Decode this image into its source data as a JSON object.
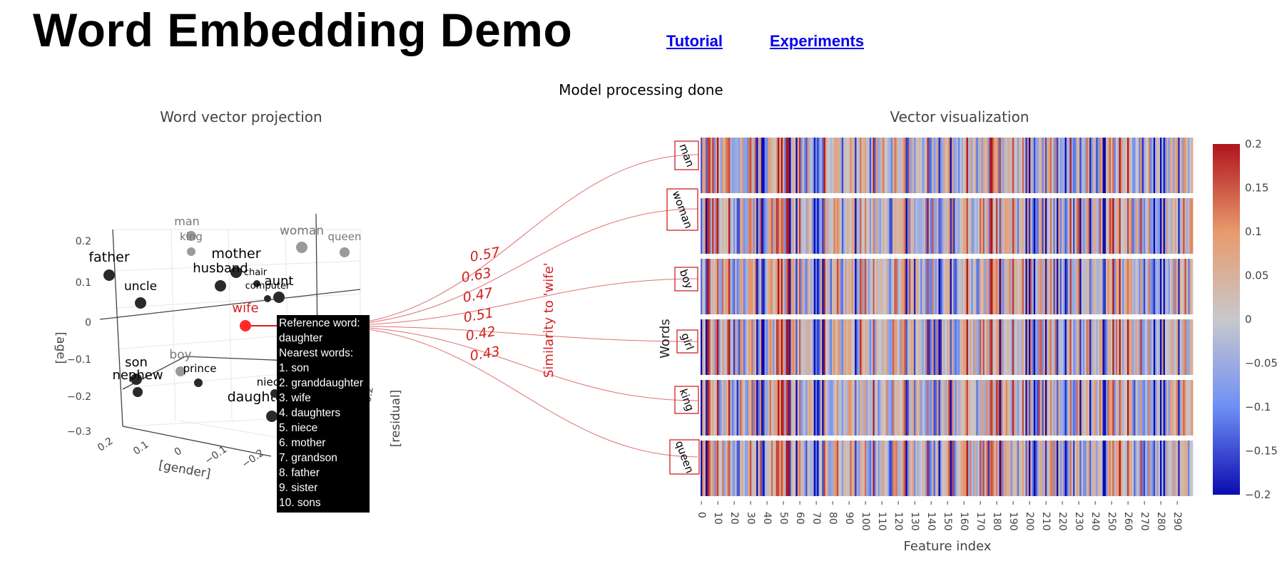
{
  "header": {
    "title": "Word Embedding Demo",
    "links": [
      {
        "label": "Tutorial"
      },
      {
        "label": "Experiments"
      }
    ]
  },
  "status": "Model processing done",
  "projection": {
    "title": "Word vector projection",
    "axes": {
      "x": "[gender]",
      "y": "[age]",
      "z": "[residual]"
    },
    "age_ticks": [
      "0.2",
      "0.1",
      "0",
      "−0.1",
      "−0.2",
      "−0.3"
    ],
    "gender_ticks": [
      "0.2",
      "0.1",
      "0",
      "−0.1",
      "−0.2"
    ],
    "residual_ticks": [
      "−0.2"
    ],
    "points": [
      {
        "label": "man",
        "group": "ref"
      },
      {
        "label": "king",
        "group": "ref"
      },
      {
        "label": "woman",
        "group": "ref"
      },
      {
        "label": "queen",
        "group": "ref"
      },
      {
        "label": "boy",
        "group": "ref"
      },
      {
        "label": "father",
        "group": "word"
      },
      {
        "label": "uncle",
        "group": "word"
      },
      {
        "label": "mother",
        "group": "word"
      },
      {
        "label": "husband",
        "group": "word"
      },
      {
        "label": "chair",
        "group": "word"
      },
      {
        "label": "computer",
        "group": "word"
      },
      {
        "label": "aunt",
        "group": "word"
      },
      {
        "label": "son",
        "group": "word"
      },
      {
        "label": "nephew",
        "group": "word"
      },
      {
        "label": "prince",
        "group": "word"
      },
      {
        "label": "daughter",
        "group": "word"
      },
      {
        "label": "niece",
        "group": "word"
      },
      {
        "label": "wife",
        "group": "selected"
      }
    ],
    "tooltip": {
      "lines": [
        "Reference word:",
        "daughter",
        "Nearest words:",
        "1. son",
        "2. granddaughter",
        "3. wife",
        "4. daughters",
        "5. niece",
        "6. mother",
        "7. grandson",
        "8. father",
        "9. sister",
        "10. sons"
      ]
    }
  },
  "similarity": {
    "label": "Similarity to 'wife'",
    "values": [
      {
        "word": "man",
        "value": "0.57"
      },
      {
        "word": "woman",
        "value": "0.63"
      },
      {
        "word": "boy",
        "value": "0.47"
      },
      {
        "word": "girl",
        "value": "0.51"
      },
      {
        "word": "king",
        "value": "0.42"
      },
      {
        "word": "queen",
        "value": "0.43"
      }
    ]
  },
  "chart_data": {
    "type": "heatmap",
    "title": "Vector visualization",
    "xlabel": "Feature index",
    "ylabel": "Words",
    "rows": [
      "man",
      "woman",
      "boy",
      "girl",
      "king",
      "queen"
    ],
    "xlim": [
      0,
      299
    ],
    "xticks": [
      0,
      10,
      20,
      30,
      40,
      50,
      60,
      70,
      80,
      90,
      100,
      110,
      120,
      130,
      140,
      150,
      160,
      170,
      180,
      190,
      200,
      210,
      220,
      230,
      240,
      250,
      260,
      270,
      280,
      290
    ],
    "colorscale": {
      "min": -0.2,
      "max": 0.2,
      "ticks": [
        "0.2",
        "0.15",
        "0.1",
        "0.05",
        "0",
        "−0.05",
        "−0.1",
        "−0.15",
        "−0.2"
      ],
      "colors": [
        "#0b0bb0",
        "#6f8ff5",
        "#c8c8cc",
        "#e89a6c",
        "#b0141e"
      ]
    }
  },
  "colors": {
    "link": "#0000ee",
    "accent": "#d32020",
    "ref_point": "#9a9a9a",
    "word_point": "#2a2a2a"
  }
}
